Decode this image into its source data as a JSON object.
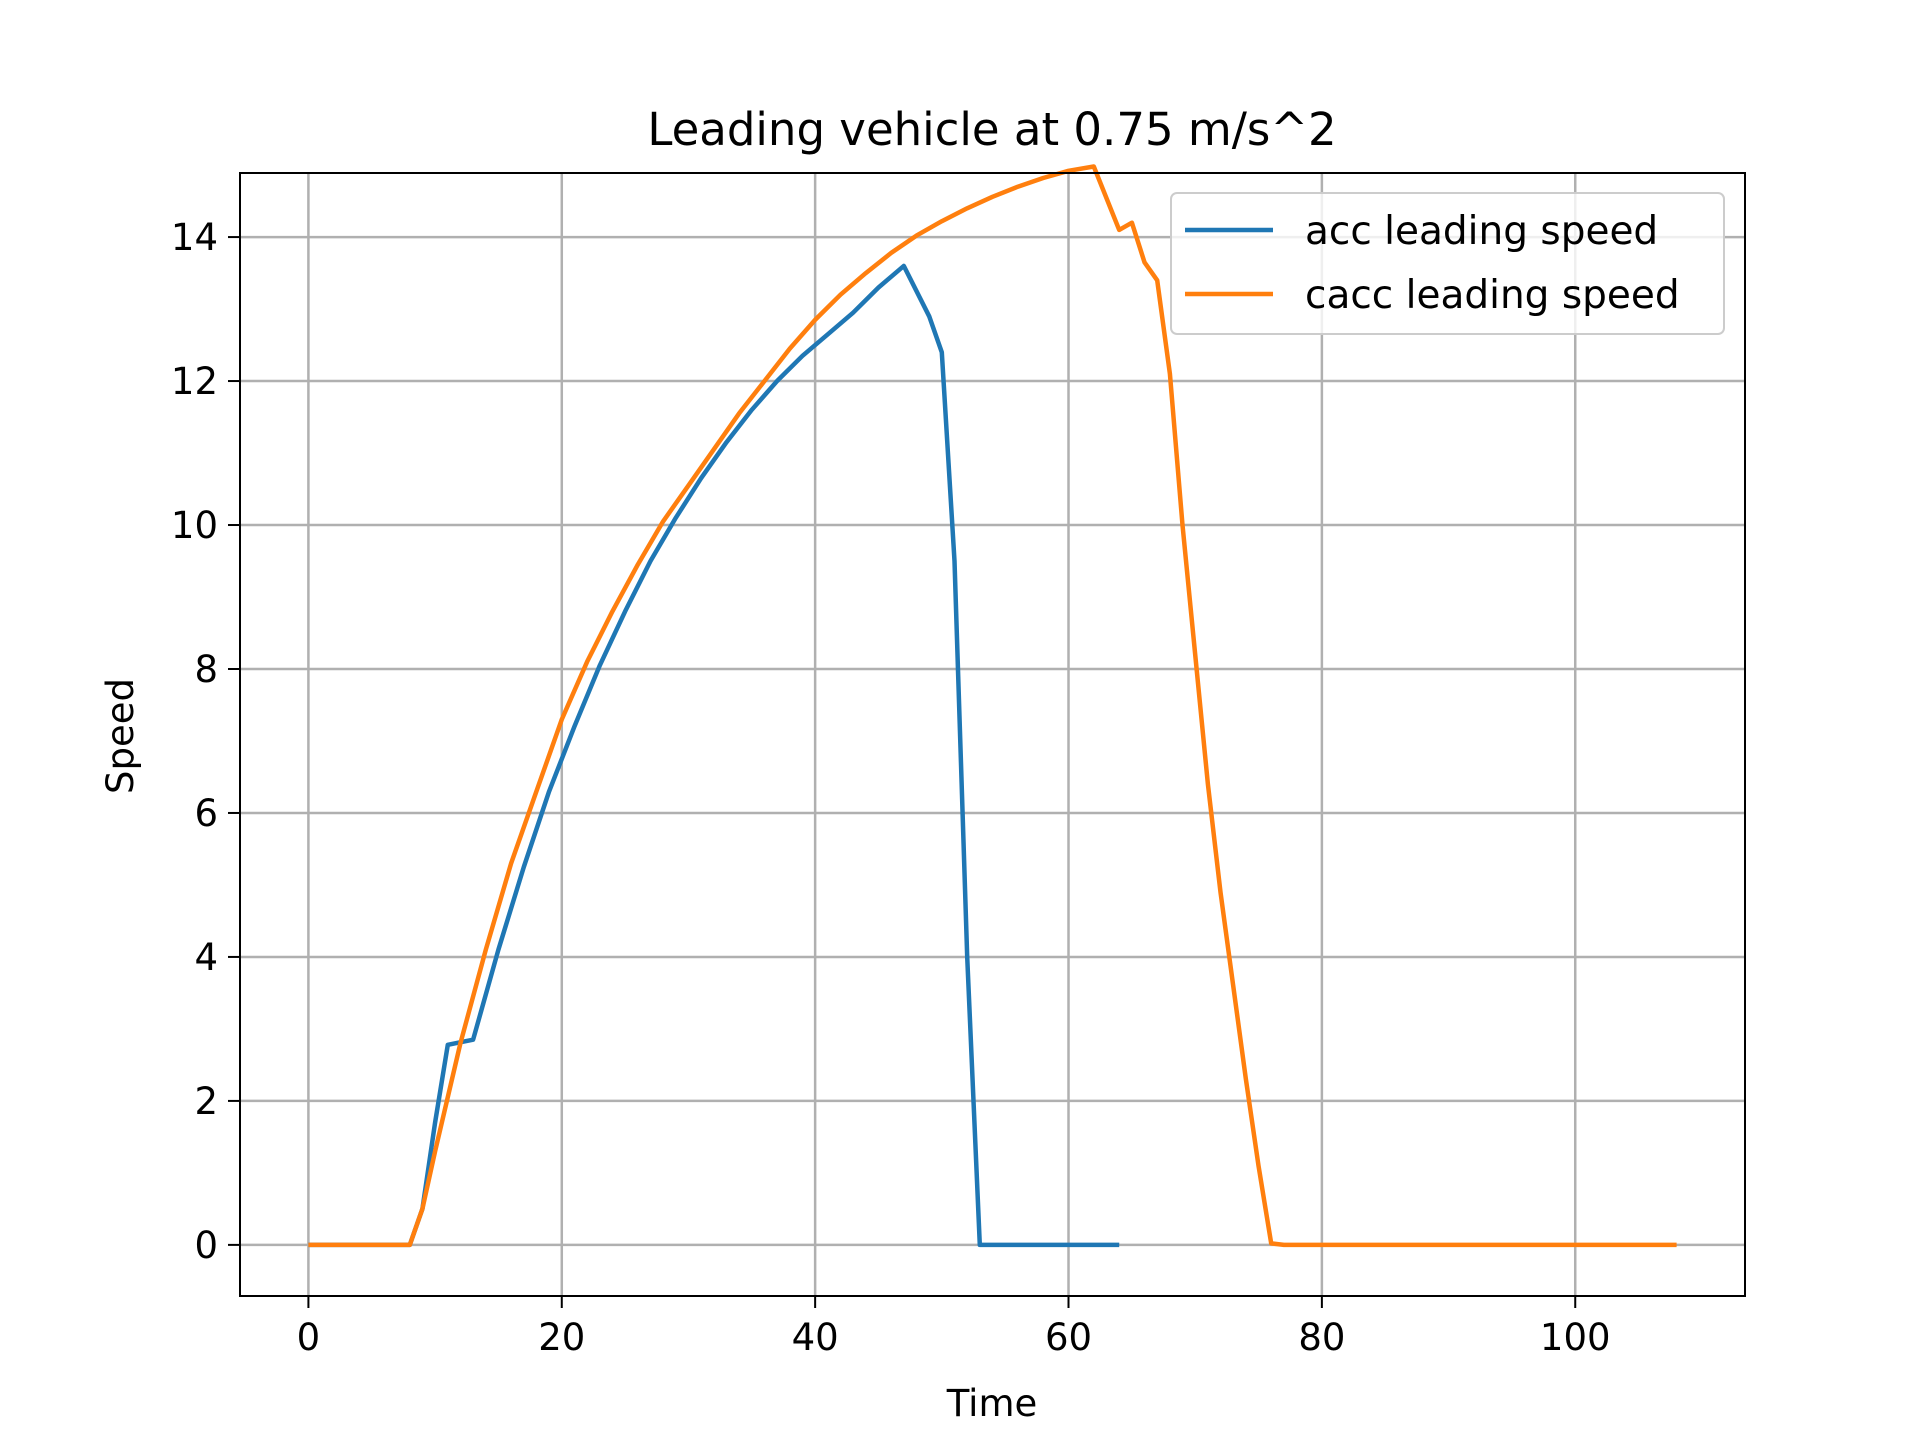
{
  "chart_data": {
    "type": "line",
    "title": "Leading vehicle at 0.75 m/s^2",
    "xlabel": "Time",
    "ylabel": "Speed",
    "xlim": [
      -5.4,
      113.4
    ],
    "ylim": [
      -0.71,
      14.89
    ],
    "xticks": [
      0,
      20,
      40,
      60,
      80,
      100
    ],
    "yticks": [
      0,
      2,
      4,
      6,
      8,
      10,
      12,
      14
    ],
    "grid": true,
    "legend_position": "upper right",
    "series": [
      {
        "name": "acc leading speed",
        "color": "#1f77b4",
        "x": [
          0,
          8,
          9,
          10,
          11,
          13,
          15,
          17,
          19,
          21,
          23,
          25,
          27,
          29,
          31,
          33,
          35,
          37,
          39,
          41,
          43,
          45,
          47,
          49,
          50,
          51,
          52,
          53,
          54,
          56,
          58,
          60,
          62,
          64
        ],
        "y": [
          0,
          0,
          0.5,
          1.7,
          2.78,
          2.85,
          4.1,
          5.25,
          6.3,
          7.2,
          8.05,
          8.8,
          9.5,
          10.1,
          10.65,
          11.15,
          11.6,
          12.0,
          12.35,
          12.65,
          12.95,
          13.3,
          13.6,
          12.9,
          12.4,
          9.5,
          4.0,
          0,
          0,
          0,
          0,
          0,
          0,
          0
        ]
      },
      {
        "name": "cacc leading speed",
        "color": "#ff7f0e",
        "x": [
          0,
          8,
          9,
          10,
          12,
          14,
          16,
          18,
          20,
          22,
          24,
          26,
          28,
          30,
          32,
          34,
          36,
          38,
          40,
          42,
          44,
          46,
          48,
          50,
          52,
          54,
          56,
          58,
          60,
          62,
          64,
          65,
          66,
          67,
          68,
          69,
          70,
          71,
          72,
          73,
          74,
          75,
          76,
          77,
          80,
          90,
          100,
          108
        ],
        "y": [
          0,
          0,
          0.5,
          1.3,
          2.8,
          4.1,
          5.3,
          6.3,
          7.3,
          8.1,
          8.8,
          9.45,
          10.05,
          10.55,
          11.05,
          11.55,
          12.0,
          12.45,
          12.85,
          13.2,
          13.5,
          13.78,
          14.02,
          14.22,
          14.4,
          14.56,
          14.7,
          14.82,
          14.92,
          14.98,
          14.1,
          14.2,
          13.65,
          13.4,
          12.1,
          10.0,
          8.2,
          6.4,
          4.9,
          3.6,
          2.3,
          1.1,
          0.02,
          0,
          0,
          0,
          0,
          0
        ]
      }
    ]
  }
}
